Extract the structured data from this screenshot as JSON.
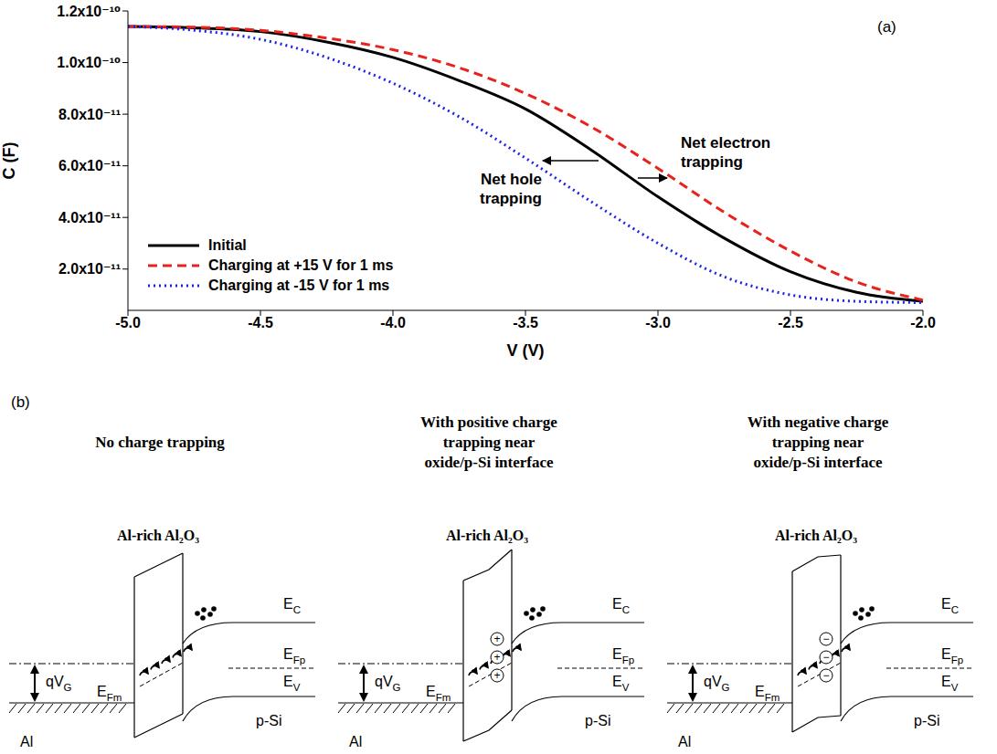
{
  "chart_data": {
    "type": "line",
    "panel_label": "(a)",
    "x_label": "V (V)",
    "y_label": "C (F)",
    "x": [
      -5,
      -4.75,
      -4.5,
      -4.25,
      -4,
      -3.75,
      -3.5,
      -3.25,
      -3,
      -2.75,
      -2.5,
      -2.25,
      -2
    ],
    "series": [
      {
        "name": "Initial",
        "color": "#000000",
        "line_style": "solid",
        "values": [
          1.14e-10,
          1.135e-10,
          1.12e-10,
          1.08e-10,
          1.02e-10,
          9.3e-11,
          8.2e-11,
          6.6e-11,
          4.8e-11,
          3.2e-11,
          1.9e-11,
          1.1e-11,
          7.5e-12
        ]
      },
      {
        "name": "Charging at +15 V for 1 ms",
        "color": "#e8221c",
        "line_style": "dashed",
        "values": [
          1.14e-10,
          1.137e-10,
          1.125e-10,
          1.095e-10,
          1.05e-10,
          9.8e-11,
          8.8e-11,
          7.5e-11,
          5.9e-11,
          4.2e-11,
          2.7e-11,
          1.5e-11,
          8e-12
        ]
      },
      {
        "name": "Charging at -15 V for 1 ms",
        "color": "#1e22e6",
        "line_style": "dotted",
        "values": [
          1.14e-10,
          1.125e-10,
          1.09e-10,
          1.02e-10,
          9.2e-11,
          7.9e-11,
          6.3e-11,
          4.6e-11,
          3e-11,
          1.7e-11,
          1e-11,
          7.5e-12,
          7e-12
        ]
      }
    ],
    "xlim": [
      -5,
      -2
    ],
    "xticks": [
      {
        "value": -5,
        "label": "-5.0"
      },
      {
        "value": -4.5,
        "label": "-4.5"
      },
      {
        "value": -4,
        "label": "-4.0"
      },
      {
        "value": -3.5,
        "label": "-3.5"
      },
      {
        "value": -3,
        "label": "-3.0"
      },
      {
        "value": -2.5,
        "label": "-2.5"
      },
      {
        "value": -2,
        "label": "-2.0"
      }
    ],
    "ylim": [
      4e-12,
      1.2e-10
    ],
    "yticks": [
      {
        "value": 2e-11,
        "label": "2.0x10⁻¹¹"
      },
      {
        "value": 4e-11,
        "label": "4.0x10⁻¹¹"
      },
      {
        "value": 6e-11,
        "label": "6.0x10⁻¹¹"
      },
      {
        "value": 8e-11,
        "label": "8.0x10⁻¹¹"
      },
      {
        "value": 1e-10,
        "label": "1.0x10⁻¹⁰"
      },
      {
        "value": 1.2e-10,
        "label": "1.2x10⁻¹⁰"
      }
    ],
    "annotations": [
      "Net hole trapping",
      "Net electron trapping"
    ],
    "legend": "lower left",
    "grid": false
  },
  "diagram": {
    "label": "(b)",
    "panels": [
      {
        "title": "No charge trapping",
        "oxide": "Al-rich Al₂O₃",
        "metal": "Al",
        "semiconductor": "p-Si",
        "levels": [
          "EC",
          "EFp",
          "EV"
        ],
        "metal_level": "EFm",
        "bias": "qVG"
      },
      {
        "title": "With positive charge trapping near oxide/p-Si interface",
        "oxide": "Al-rich Al₂O₃",
        "metal": "Al",
        "semiconductor": "p-Si",
        "levels": [
          "EC",
          "EFp",
          "EV"
        ],
        "metal_level": "EFm",
        "bias": "qVG",
        "charge": "+"
      },
      {
        "title": "With negative charge trapping near oxide/p-Si interface",
        "oxide": "Al-rich Al₂O₃",
        "metal": "Al",
        "semiconductor": "p-Si",
        "levels": [
          "EC",
          "EFp",
          "EV"
        ],
        "metal_level": "EFm",
        "bias": "qVG",
        "charge": "−"
      }
    ]
  }
}
